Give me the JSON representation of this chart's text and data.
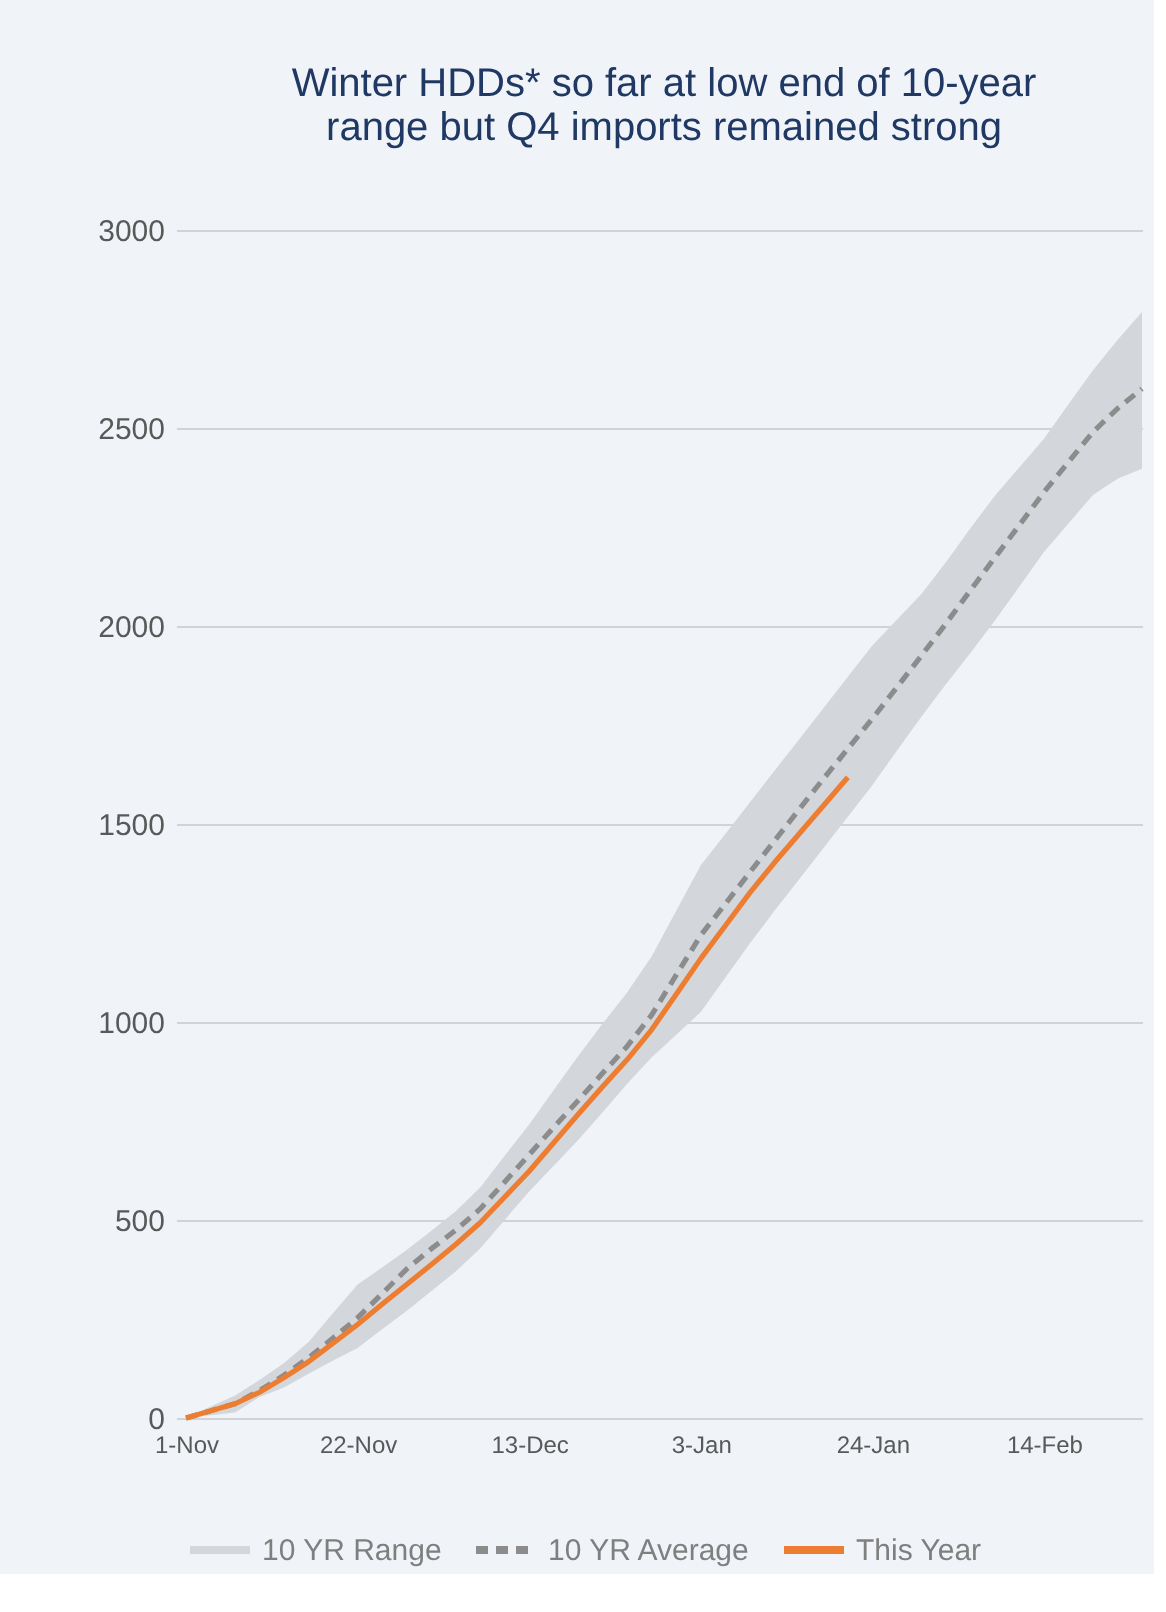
{
  "chart_data": {
    "type": "line",
    "title": "Winter HDDs* so far at low end of 10-year range but Q4 imports remained strong",
    "categories": [
      "1-Nov",
      null,
      null,
      null,
      null,
      null,
      null,
      "22-Nov",
      null,
      null,
      null,
      null,
      null,
      null,
      "13-Dec",
      null,
      null,
      null,
      null,
      null,
      null,
      "3-Jan",
      null,
      null,
      null,
      null,
      null,
      null,
      "24-Jan",
      null,
      null,
      null,
      null,
      null,
      null,
      "14-Feb",
      null,
      null,
      null,
      null
    ],
    "series": [
      {
        "name": "10 YR Range",
        "color": "#d3d7dc",
        "values": [
          null,
          null,
          null,
          null,
          null,
          null,
          null,
          null,
          null,
          null,
          null,
          null,
          null,
          null,
          null,
          null,
          null,
          null,
          null,
          null,
          null,
          null,
          null,
          null,
          null,
          null,
          null,
          null,
          null,
          null,
          null,
          null,
          null,
          null,
          null,
          null,
          null,
          null,
          null,
          null
        ],
        "lower": [
          0,
          7,
          14,
          53,
          77,
          112,
          145,
          177,
          224,
          270,
          320,
          370,
          428,
          500,
          572,
          637,
          702,
          772,
          844,
          911,
          968,
          1025,
          1112,
          1198,
          1280,
          1359,
          1439,
          1518,
          1598,
          1685,
          1771,
          1853,
          1932,
          2014,
          2100,
          2187,
          2259,
          2331,
          2372,
          2397
        ],
        "upper": [
          0,
          29,
          57,
          96,
          139,
          192,
          265,
          337,
          380,
          424,
          472,
          522,
          582,
          662,
          741,
          828,
          914,
          996,
          1075,
          1166,
          1281,
          1396,
          1475,
          1554,
          1634,
          1713,
          1792,
          1872,
          1951,
          2016,
          2081,
          2161,
          2247,
          2329,
          2401,
          2473,
          2560,
          2646,
          2722,
          2793
        ]
      },
      {
        "name": "10 YR Average",
        "type": "line",
        "color": "#8c8c8c",
        "line_style": "dashed",
        "values": [
          0,
          18,
          36,
          69,
          108,
          152,
          202,
          253,
          314,
          376,
          427,
          474,
          528,
          596,
          665,
          734,
          802,
          871,
          939,
          1018,
          1119,
          1219,
          1298,
          1378,
          1457,
          1536,
          1614,
          1690,
          1766,
          1845,
          1925,
          2006,
          2090,
          2173,
          2255,
          2338,
          2414,
          2490,
          2549,
          2599
        ]
      },
      {
        "name": "This Year",
        "color": "#ed7d31",
        "line_style": "solid",
        "values": [
          0,
          18,
          36,
          65,
          102,
          142,
          189,
          236,
          287,
          337,
          387,
          438,
          493,
          558,
          623,
          695,
          767,
          837,
          905,
          981,
          1070,
          1160,
          1243,
          1326,
          1402,
          1474,
          1546,
          1618,
          null,
          null,
          null,
          null,
          null,
          null,
          null,
          null,
          null,
          null,
          null,
          null
        ]
      }
    ],
    "ylim": [
      0,
      3000
    ],
    "yticks": [
      0,
      500,
      1000,
      1500,
      2000,
      2500,
      3000
    ],
    "grid": "y",
    "legend": "bottom",
    "marker": "none"
  }
}
